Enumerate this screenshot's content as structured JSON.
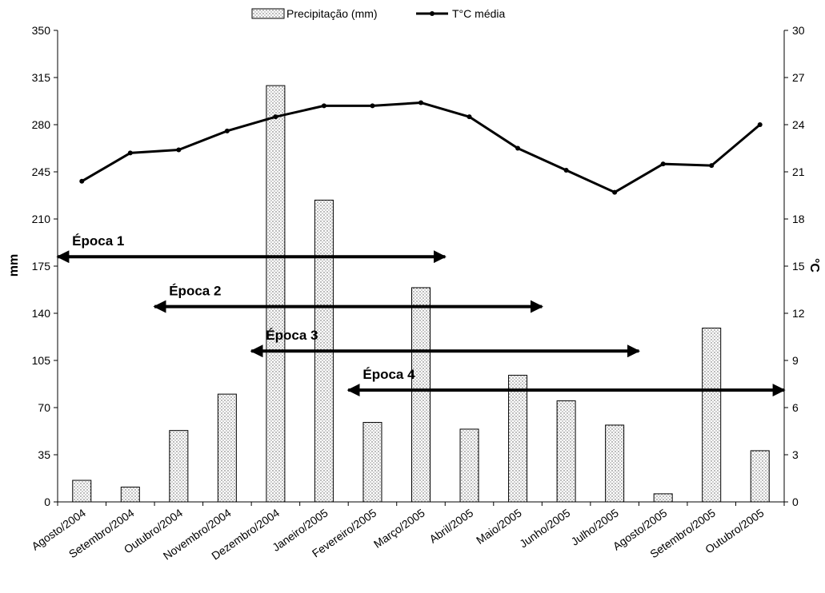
{
  "chart_data": {
    "type": "bar+line",
    "categories": [
      "Agosto/2004",
      "Setembro/2004",
      "Outubro/2004",
      "Novembro/2004",
      "Dezembro/2004",
      "Janeiro/2005",
      "Fevereiro/2005",
      "Março/2005",
      "Abril/2005",
      "Maio/2005",
      "Junho/2005",
      "Julho/2005",
      "Agosto/2005",
      "Setembro/2005",
      "Outubro/2005"
    ],
    "series": [
      {
        "name": "Precipitação (mm)",
        "type": "bar",
        "axis": "left",
        "values": [
          16,
          11,
          53,
          80,
          309,
          224,
          59,
          159,
          54,
          94,
          75,
          57,
          6,
          129,
          38
        ]
      },
      {
        "name": "T°C média",
        "type": "line",
        "axis": "right",
        "values": [
          20.4,
          22.2,
          22.4,
          23.6,
          24.5,
          25.2,
          25.2,
          25.4,
          24.5,
          22.5,
          21.1,
          19.7,
          21.5,
          21.4,
          24.0
        ]
      }
    ],
    "ylabel_left": "mm",
    "ylabel_right": "°C",
    "ylim_left": [
      0,
      350
    ],
    "ylim_right": [
      0,
      30
    ],
    "yticks_left": [
      "0",
      "35",
      "70",
      "105",
      "140",
      "175",
      "210",
      "245",
      "280",
      "315",
      "350"
    ],
    "yticks_right": [
      "0",
      "3",
      "6",
      "9",
      "12",
      "15",
      "18",
      "21",
      "24",
      "27",
      "30"
    ],
    "grid": false,
    "legend_position": "top-center",
    "annotations": [
      {
        "label": "Época 1",
        "from": "Agosto/2004",
        "to": "Março/2005",
        "level_mm": 182
      },
      {
        "label": "Época 2",
        "from": "Outubro/2004",
        "to": "Maio/2005",
        "level_mm": 145
      },
      {
        "label": "Época 3",
        "from": "Dezembro/2004",
        "to": "Julho/2005",
        "level_mm": 112
      },
      {
        "label": "Época 4",
        "from": "Fevereiro/2005",
        "to": "Outubro/2005",
        "level_mm": 83
      }
    ]
  }
}
